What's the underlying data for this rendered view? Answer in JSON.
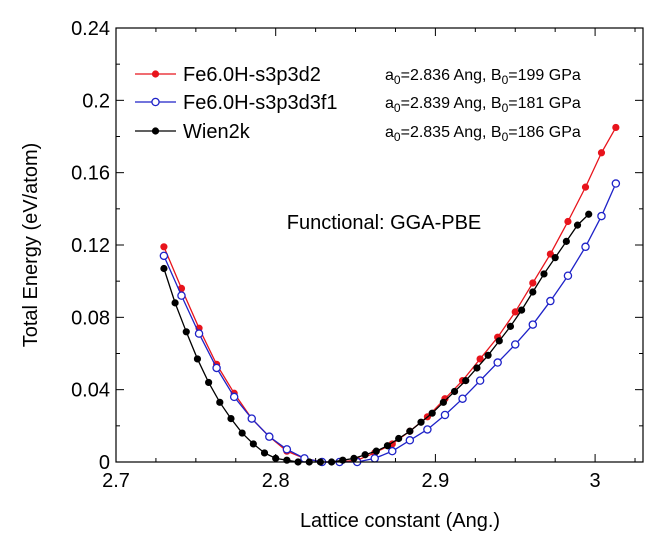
{
  "chart_data": {
    "type": "line",
    "title": "",
    "xlabel": "Lattice constant (Ang.)",
    "ylabel": "Total Energy (eV/atom)",
    "xlim": [
      2.7,
      3.03
    ],
    "ylim": [
      0,
      0.24
    ],
    "xticks": [
      2.7,
      2.8,
      2.9,
      3.0
    ],
    "xtick_labels": [
      "2.7",
      "2.8",
      "2.9",
      "3"
    ],
    "yticks": [
      0,
      0.04,
      0.08,
      0.12,
      0.16,
      0.2,
      0.24
    ],
    "ytick_labels": [
      "0",
      "0.04",
      "0.08",
      "0.12",
      "0.16",
      "0.2",
      "0.24"
    ],
    "grid": false,
    "legend_position": "top-left",
    "annotation": "Functional: GGA-PBE",
    "series": [
      {
        "name": "Fe6.0H-s3p3d2",
        "color": "#e8141c",
        "marker": "filled-circle",
        "fit_note": {
          "sub": "0",
          "a": "=2.836 Ang, B",
          "b": "=199 GPa"
        },
        "x": [
          2.73,
          2.741,
          2.752,
          2.763,
          2.774,
          2.785,
          2.796,
          2.807,
          2.818,
          2.829,
          2.84,
          2.851,
          2.862,
          2.873,
          2.884,
          2.895,
          2.906,
          2.917,
          2.928,
          2.939,
          2.95,
          2.961,
          2.972,
          2.983,
          2.994,
          3.004,
          3.013
        ],
        "y": [
          0.119,
          0.096,
          0.074,
          0.054,
          0.038,
          0.024,
          0.014,
          0.006,
          0.002,
          0.0,
          0.0,
          0.001,
          0.005,
          0.01,
          0.017,
          0.025,
          0.035,
          0.045,
          0.057,
          0.069,
          0.083,
          0.099,
          0.115,
          0.133,
          0.152,
          0.171,
          0.185
        ]
      },
      {
        "name": "Fe6.0H-s3p3d3f1",
        "color": "#1e22c8",
        "marker": "open-circle",
        "fit_note": {
          "sub": "0",
          "a": "=2.839 Ang, B",
          "b": "=181 GPa"
        },
        "x": [
          2.73,
          2.741,
          2.752,
          2.763,
          2.774,
          2.785,
          2.796,
          2.807,
          2.818,
          2.829,
          2.84,
          2.851,
          2.862,
          2.873,
          2.884,
          2.895,
          2.906,
          2.917,
          2.928,
          2.939,
          2.95,
          2.961,
          2.972,
          2.983,
          2.994,
          3.004,
          3.013
        ],
        "y": [
          0.114,
          0.092,
          0.071,
          0.052,
          0.036,
          0.024,
          0.014,
          0.007,
          0.002,
          0.0,
          0.0,
          0.0,
          0.002,
          0.006,
          0.012,
          0.018,
          0.026,
          0.035,
          0.045,
          0.055,
          0.065,
          0.076,
          0.089,
          0.103,
          0.119,
          0.136,
          0.154
        ]
      },
      {
        "name": "Wien2k",
        "color": "#000000",
        "marker": "filled-circle",
        "fit_note": {
          "sub": "0",
          "a": "=2.835 Ang, B",
          "b": "=186 GPa"
        },
        "x": [
          2.73,
          2.737,
          2.744,
          2.751,
          2.758,
          2.765,
          2.772,
          2.779,
          2.786,
          2.793,
          2.8,
          2.807,
          2.814,
          2.821,
          2.828,
          2.835,
          2.842,
          2.849,
          2.856,
          2.863,
          2.87,
          2.877,
          2.884,
          2.891,
          2.898,
          2.905,
          2.912,
          2.919,
          2.926,
          2.933,
          2.94,
          2.947,
          2.954,
          2.961,
          2.968,
          2.975,
          2.982,
          2.989,
          2.996
        ],
        "y": [
          0.107,
          0.088,
          0.072,
          0.057,
          0.044,
          0.033,
          0.024,
          0.016,
          0.01,
          0.005,
          0.002,
          0.001,
          0.0,
          0.0,
          0.0,
          0.0,
          0.001,
          0.002,
          0.004,
          0.006,
          0.009,
          0.013,
          0.017,
          0.022,
          0.027,
          0.033,
          0.039,
          0.045,
          0.052,
          0.059,
          0.067,
          0.075,
          0.084,
          0.094,
          0.104,
          0.113,
          0.122,
          0.131,
          0.137
        ]
      }
    ]
  }
}
